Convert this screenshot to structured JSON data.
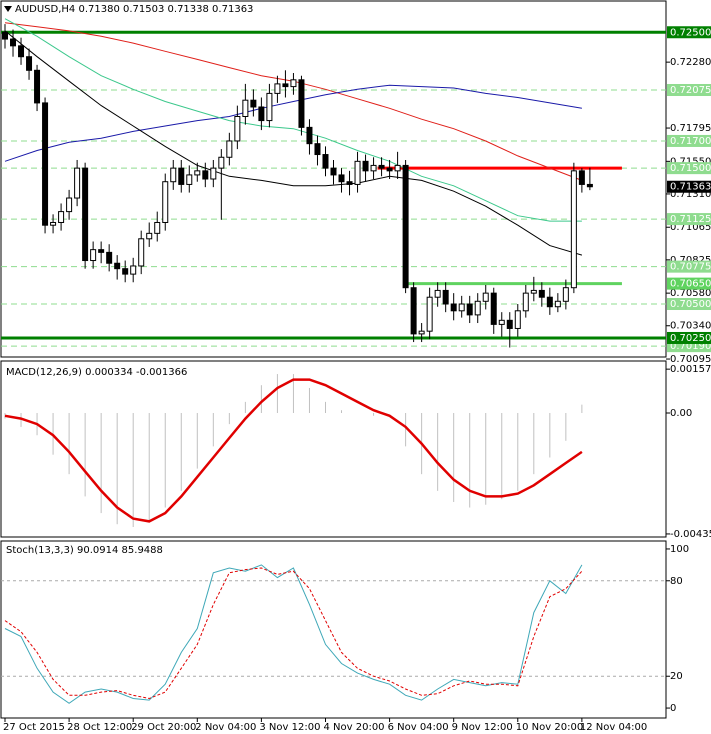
{
  "chart_data": [
    {
      "type": "candlestick",
      "title": "AUDUSD,H4  0.71380 0.71503 0.71338 0.71363",
      "xlim": [
        -0.5,
        82.5
      ],
      "xticks": [
        {
          "value": 0,
          "label": "27 Oct 2015"
        },
        {
          "value": 8,
          "label": "28 Oct 12:00"
        },
        {
          "value": 16,
          "label": "29 Oct 20:00"
        },
        {
          "value": 24,
          "label": "2 Nov 04:00"
        },
        {
          "value": 32,
          "label": "3 Nov 12:00"
        },
        {
          "value": 40,
          "label": "4 Nov 20:00"
        },
        {
          "value": 48,
          "label": "6 Nov 04:00"
        },
        {
          "value": 56,
          "label": "9 Nov 12:00"
        },
        {
          "value": 64,
          "label": "10 Nov 20:00"
        },
        {
          "value": 72,
          "label": "12 Nov 04:00"
        }
      ],
      "ylim": [
        0.7011,
        0.7273
      ],
      "yticks": [
        {
          "value": 0.7228,
          "label": "0.72280"
        },
        0.71795,
        {
          "value": 0.7155,
          "label": "0.71550"
        },
        {
          "value": 0.7131,
          "label": "0.71310"
        },
        0.71065,
        0.70825,
        {
          "value": 0.7058,
          "label": "0.70580"
        },
        {
          "value": 0.7034,
          "label": "0.70340"
        },
        0.70095
      ],
      "up_color": "#ffffff",
      "down_color": "#000000",
      "open": [
        0.725,
        0.7245,
        0.724,
        0.7232,
        0.7222,
        0.7198,
        0.7108,
        0.711,
        0.7118,
        0.7128,
        0.715,
        0.7082,
        0.709,
        0.7088,
        0.708,
        0.7076,
        0.7072,
        0.7078,
        0.7098,
        0.7102,
        0.711,
        0.714,
        0.715,
        0.7138,
        0.7145,
        0.7148,
        0.7142,
        0.715,
        0.7158,
        0.717,
        0.7188,
        0.72,
        0.7195,
        0.7185,
        0.7205,
        0.7212,
        0.721,
        0.7215,
        0.718,
        0.7168,
        0.716,
        0.715,
        0.7145,
        0.714,
        0.7138,
        0.7155,
        0.7148,
        0.7152,
        0.715,
        0.7148,
        0.7152,
        0.7062,
        0.7028,
        0.703,
        0.7055,
        0.706,
        0.705,
        0.7045,
        0.705,
        0.7042,
        0.7052,
        0.7058,
        0.7035,
        0.7038,
        0.7032,
        0.7045,
        0.7058,
        0.706,
        0.7055,
        0.7048,
        0.7052,
        0.7062,
        0.7148,
        0.7138
      ],
      "high": [
        0.7256,
        0.7252,
        0.7246,
        0.7238,
        0.7226,
        0.7202,
        0.7116,
        0.7124,
        0.7134,
        0.7156,
        0.7154,
        0.7096,
        0.7096,
        0.7094,
        0.7086,
        0.7082,
        0.7084,
        0.7104,
        0.711,
        0.7118,
        0.7146,
        0.7156,
        0.7156,
        0.7152,
        0.7154,
        0.7154,
        0.7156,
        0.7164,
        0.7176,
        0.7196,
        0.7212,
        0.7208,
        0.7202,
        0.7212,
        0.7218,
        0.7222,
        0.722,
        0.7218,
        0.7186,
        0.7174,
        0.7166,
        0.7156,
        0.715,
        0.7148,
        0.7162,
        0.716,
        0.7158,
        0.7158,
        0.7156,
        0.7162,
        0.7156,
        0.7066,
        0.7036,
        0.7062,
        0.7066,
        0.7066,
        0.7058,
        0.7056,
        0.7056,
        0.7058,
        0.7064,
        0.7062,
        0.7044,
        0.7044,
        0.705,
        0.7064,
        0.707,
        0.7066,
        0.7062,
        0.7058,
        0.7068,
        0.7154,
        0.715,
        0.71503
      ],
      "low": [
        0.7238,
        0.7232,
        0.7226,
        0.7215,
        0.7192,
        0.7102,
        0.7102,
        0.7104,
        0.7112,
        0.7122,
        0.7076,
        0.7076,
        0.708,
        0.7074,
        0.7068,
        0.7066,
        0.7066,
        0.7072,
        0.7092,
        0.7096,
        0.7104,
        0.7134,
        0.7132,
        0.7132,
        0.714,
        0.7136,
        0.7136,
        0.7112,
        0.7152,
        0.7164,
        0.7182,
        0.7188,
        0.7178,
        0.718,
        0.7198,
        0.7202,
        0.7204,
        0.7174,
        0.716,
        0.7152,
        0.7144,
        0.7138,
        0.7132,
        0.713,
        0.7132,
        0.714,
        0.7142,
        0.7144,
        0.7142,
        0.7142,
        0.7058,
        0.7022,
        0.7022,
        0.7024,
        0.7048,
        0.7044,
        0.7038,
        0.704,
        0.7036,
        0.7036,
        0.7046,
        0.7028,
        0.7026,
        0.7018,
        0.7026,
        0.704,
        0.7052,
        0.7048,
        0.7042,
        0.7044,
        0.7046,
        0.7058,
        0.7132,
        0.71338
      ],
      "close": [
        0.7245,
        0.724,
        0.7232,
        0.7222,
        0.7198,
        0.7108,
        0.711,
        0.7118,
        0.7128,
        0.715,
        0.7082,
        0.709,
        0.7088,
        0.708,
        0.7076,
        0.7072,
        0.7078,
        0.7098,
        0.7102,
        0.711,
        0.714,
        0.715,
        0.7138,
        0.7145,
        0.7148,
        0.7142,
        0.715,
        0.7158,
        0.717,
        0.7188,
        0.72,
        0.7195,
        0.7185,
        0.7205,
        0.7212,
        0.721,
        0.7215,
        0.718,
        0.7168,
        0.716,
        0.715,
        0.7145,
        0.714,
        0.7138,
        0.7155,
        0.7148,
        0.7152,
        0.715,
        0.7148,
        0.7152,
        0.7062,
        0.7028,
        0.703,
        0.7055,
        0.706,
        0.705,
        0.7045,
        0.705,
        0.7042,
        0.7052,
        0.7058,
        0.7035,
        0.7038,
        0.7032,
        0.7045,
        0.7058,
        0.706,
        0.7055,
        0.7048,
        0.7052,
        0.7062,
        0.7148,
        0.7138,
        0.71363
      ],
      "lines": [
        {
          "color": "#e0201a",
          "x": [
            0,
            4,
            8,
            12,
            16,
            20,
            24,
            28,
            32,
            36,
            40,
            44,
            48,
            52,
            56,
            60,
            64,
            68,
            72
          ],
          "values": [
            0.7257,
            0.7254,
            0.7251,
            0.7247,
            0.7242,
            0.7236,
            0.723,
            0.7224,
            0.7218,
            0.7214,
            0.7208,
            0.7201,
            0.7194,
            0.7186,
            0.7179,
            0.717,
            0.7159,
            0.715,
            0.7141
          ]
        },
        {
          "color": "#1a1aa8",
          "x": [
            0,
            4,
            8,
            12,
            16,
            20,
            24,
            28,
            32,
            36,
            40,
            44,
            48,
            52,
            56,
            60,
            64,
            68,
            72
          ],
          "values": [
            0.7155,
            0.7163,
            0.7169,
            0.7172,
            0.7177,
            0.7181,
            0.7185,
            0.7188,
            0.7194,
            0.7199,
            0.7204,
            0.7208,
            0.7211,
            0.721,
            0.7209,
            0.7205,
            0.7202,
            0.7198,
            0.7194
          ]
        },
        {
          "color": "#3cc88c",
          "x": [
            0,
            4,
            8,
            12,
            16,
            20,
            24,
            28,
            32,
            36,
            40,
            44,
            48,
            52,
            56,
            60,
            64,
            68,
            72
          ],
          "values": [
            0.726,
            0.7247,
            0.7232,
            0.7218,
            0.7208,
            0.7199,
            0.7192,
            0.7185,
            0.7181,
            0.7179,
            0.7172,
            0.7163,
            0.7155,
            0.7144,
            0.7137,
            0.7126,
            0.7115,
            0.7111,
            0.7111
          ]
        },
        {
          "color": "#000000",
          "x": [
            0,
            4,
            8,
            12,
            16,
            20,
            24,
            28,
            32,
            36,
            40,
            44,
            48,
            52,
            56,
            60,
            64,
            68,
            72
          ],
          "values": [
            0.7251,
            0.7232,
            0.7214,
            0.7196,
            0.7181,
            0.7166,
            0.7152,
            0.7144,
            0.7141,
            0.7137,
            0.7137,
            0.7139,
            0.7144,
            0.7141,
            0.7133,
            0.7122,
            0.7108,
            0.7093,
            0.7086
          ]
        }
      ],
      "levels": [
        {
          "value": 0.72075,
          "label": "0.72075",
          "color": "#8fdc8f",
          "style": "dashed",
          "width": 1
        },
        {
          "value": 0.717,
          "label": "0.71700",
          "color": "#8fdc8f",
          "style": "dashed",
          "width": 1
        },
        {
          "value": 0.715,
          "label": "0.71500",
          "color": "#8fdc8f",
          "style": "dashed",
          "width": 1
        },
        {
          "value": 0.71125,
          "label": "0.71125",
          "color": "#8fdc8f",
          "style": "dashed",
          "width": 1
        },
        {
          "value": 0.70775,
          "label": "0.70775",
          "color": "#8fdc8f",
          "style": "dashed",
          "width": 1
        },
        {
          "value": 0.705,
          "label": "0.70500",
          "color": "#8fdc8f",
          "style": "dashed",
          "width": 1
        },
        {
          "value": 0.7019,
          "label": "0.70190",
          "color": "#8fdc8f",
          "style": "dashed",
          "width": 1
        },
        {
          "value": 0.7065,
          "label": "0.70650",
          "color": "#5fd35f",
          "style": "solid",
          "width": 3,
          "x": [
            50,
            77
          ]
        },
        {
          "value": 0.715,
          "color": "#ff0000",
          "style": "solid",
          "width": 3,
          "x": [
            46.5,
            77
          ]
        },
        {
          "value": 0.725,
          "label": "0.72500",
          "color": "#008000",
          "style": "solid",
          "width": 3
        },
        {
          "value": 0.7025,
          "label": "0.70250",
          "color": "#008000",
          "style": "solid",
          "width": 3
        }
      ],
      "last_price_color": "#000000"
    },
    {
      "type": "macd",
      "title": "MACD(12,26,9) 0.000334 -0.001366",
      "x": [
        0,
        2,
        4,
        6,
        8,
        10,
        12,
        14,
        16,
        18,
        20,
        22,
        24,
        26,
        28,
        30,
        32,
        34,
        36,
        38,
        40,
        42,
        44,
        46,
        48,
        50,
        52,
        54,
        56,
        58,
        60,
        62,
        64,
        66,
        68,
        70,
        72
      ],
      "ylim": [
        -0.00446,
        0.00187
      ],
      "yticks": [
        0.001577,
        {
          "value": 0,
          "label": "0.00"
        },
        -0.00435
      ],
      "histogram": [
        -0.0002,
        -0.0005,
        -0.0008,
        -0.0015,
        -0.0022,
        -0.003,
        -0.0036,
        -0.004,
        -0.0041,
        -0.0039,
        -0.0034,
        -0.0028,
        -0.002,
        -0.0012,
        -0.0004,
        0.0004,
        0.001,
        0.0014,
        0.0014,
        0.0009,
        0.0004,
        0.0001,
        0,
        -0.0001,
        0,
        -0.0012,
        -0.0022,
        -0.0028,
        -0.0032,
        -0.0034,
        -0.0033,
        -0.0031,
        -0.0028,
        -0.0022,
        -0.0016,
        -0.001,
        0.0003
      ],
      "signal": [
        -0.0001,
        -0.0002,
        -0.0004,
        -0.0008,
        -0.0014,
        -0.0021,
        -0.0028,
        -0.0034,
        -0.0038,
        -0.0039,
        -0.0036,
        -0.003,
        -0.0023,
        -0.0016,
        -0.0009,
        -0.0002,
        0.0004,
        0.0009,
        0.0012,
        0.0012,
        0.001,
        0.0007,
        0.0004,
        0.0001,
        -0.0001,
        -0.0005,
        -0.0011,
        -0.0018,
        -0.0024,
        -0.0028,
        -0.003,
        -0.003,
        -0.0029,
        -0.0026,
        -0.0022,
        -0.0018,
        -0.0014
      ],
      "hist_color": "#c0c0c0",
      "signal_color": "#e00000"
    },
    {
      "type": "stochastic",
      "title": "Stoch(13,3,3) 90.0914 85.9488",
      "x": [
        0,
        2,
        4,
        6,
        8,
        10,
        12,
        14,
        16,
        18,
        20,
        22,
        24,
        26,
        28,
        30,
        32,
        34,
        36,
        38,
        40,
        42,
        44,
        46,
        48,
        50,
        52,
        54,
        56,
        58,
        60,
        62,
        64,
        66,
        68,
        70,
        72
      ],
      "ylim": [
        -6.25,
        105
      ],
      "yticks": [
        100,
        80,
        20,
        0
      ],
      "levels": [
        80,
        20
      ],
      "series": [
        {
          "color": "#3fa8b8",
          "style": "solid",
          "values": [
            50,
            45,
            25,
            10,
            3,
            10,
            12,
            10,
            6,
            5,
            15,
            35,
            50,
            85,
            88,
            86,
            90,
            82,
            88,
            65,
            40,
            28,
            22,
            18,
            15,
            8,
            5,
            12,
            18,
            16,
            14,
            16,
            15,
            60,
            80,
            72,
            90
          ]
        },
        {
          "color": "#e00000",
          "style": "dashed",
          "values": [
            55,
            48,
            35,
            18,
            8,
            8,
            10,
            11,
            8,
            6,
            10,
            25,
            40,
            65,
            85,
            87,
            88,
            84,
            86,
            75,
            55,
            35,
            25,
            20,
            17,
            12,
            8,
            9,
            14,
            17,
            15,
            15,
            14,
            45,
            70,
            75,
            86
          ]
        }
      ]
    }
  ]
}
